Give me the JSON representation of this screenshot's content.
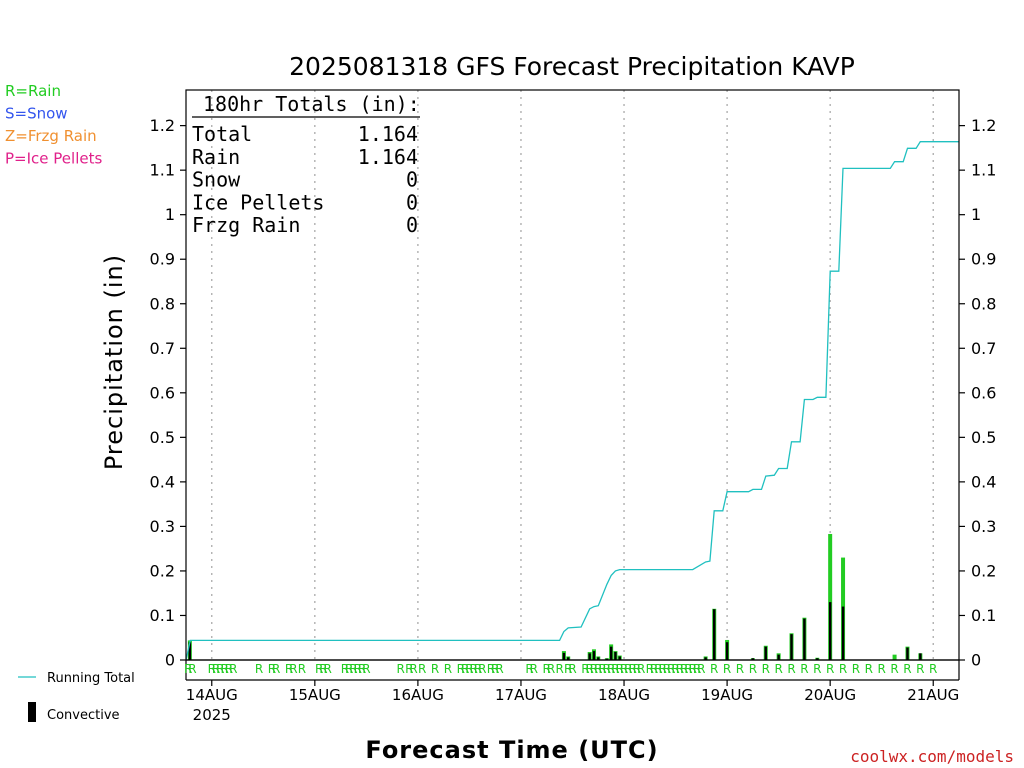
{
  "chart_data": {
    "type": "bar",
    "title": "2025081318 GFS Forecast Precipitation KAVP",
    "ylabel": "Precipitation (in)",
    "xlabel": "Forecast Time (UTC)",
    "ylim": [
      0,
      1.28
    ],
    "yticks": [
      0,
      0.1,
      0.2,
      0.3,
      0.4,
      0.5,
      0.6,
      0.7,
      0.8,
      0.9,
      1,
      1.1,
      1.2
    ],
    "ytick_labels": [
      "0",
      "0.1",
      "0.2",
      "0.3",
      "0.4",
      "0.5",
      "0.6",
      "0.7",
      "0.8",
      "0.9",
      "1",
      "1.1",
      "1.2"
    ],
    "xlim_hours": [
      0,
      180
    ],
    "x_ticks": [
      {
        "hour": 6,
        "label": "14AUG",
        "sublabel": "2025"
      },
      {
        "hour": 30,
        "label": "15AUG"
      },
      {
        "hour": 54,
        "label": "16AUG"
      },
      {
        "hour": 78,
        "label": "17AUG"
      },
      {
        "hour": 102,
        "label": "18AUG"
      },
      {
        "hour": 126,
        "label": "19AUG"
      },
      {
        "hour": 150,
        "label": "20AUG"
      },
      {
        "hour": 174,
        "label": "21AUG"
      }
    ],
    "grid": "vertical-dotted",
    "legend_top_left": [
      {
        "text": "R=Rain",
        "color": "#22cc22"
      },
      {
        "text": "S=Snow",
        "color": "#3355ee"
      },
      {
        "text": "Z=Frzg Rain",
        "color": "#f09030"
      },
      {
        "text": "P=Ice Pellets",
        "color": "#e0208a"
      }
    ],
    "legend_bottom_left": {
      "running_total": "Running Total",
      "convective": "Convective"
    },
    "totals_box": {
      "header": "180hr Totals (in):",
      "rows": [
        {
          "label": "Total",
          "value": "1.164"
        },
        {
          "label": "Rain",
          "value": "1.164"
        },
        {
          "label": "Snow",
          "value": "0"
        },
        {
          "label": "Ice Pellets",
          "value": "0"
        },
        {
          "label": "Frzg Rain",
          "value": "0"
        }
      ]
    },
    "colors": {
      "running_total": "#20c0c0",
      "rain": "#22cc22",
      "convective": "#000000",
      "grid": "#aaaaaa",
      "credit": "#cc2222"
    },
    "precip_bars": [
      {
        "hour": 0.9,
        "total": 0.044,
        "convective": 0.04
      },
      {
        "hour": 88.0,
        "total": 0.02,
        "convective": 0.016
      },
      {
        "hour": 89.0,
        "total": 0.008,
        "convective": 0.006
      },
      {
        "hour": 94.0,
        "total": 0.018,
        "convective": 0.015
      },
      {
        "hour": 95.0,
        "total": 0.024,
        "convective": 0.02
      },
      {
        "hour": 96.0,
        "total": 0.008,
        "convective": 0.006
      },
      {
        "hour": 98.0,
        "total": 0.004,
        "convective": 0.003
      },
      {
        "hour": 99.0,
        "total": 0.035,
        "convective": 0.03
      },
      {
        "hour": 100.0,
        "total": 0.02,
        "convective": 0.018
      },
      {
        "hour": 101.0,
        "total": 0.01,
        "convective": 0.008
      },
      {
        "hour": 121.0,
        "total": 0.008,
        "convective": 0.006
      },
      {
        "hour": 123.0,
        "total": 0.115,
        "convective": 0.114
      },
      {
        "hour": 126.0,
        "total": 0.045,
        "convective": 0.04
      },
      {
        "hour": 132.0,
        "total": 0.004,
        "convective": 0.004
      },
      {
        "hour": 135.0,
        "total": 0.032,
        "convective": 0.03
      },
      {
        "hour": 138.0,
        "total": 0.015,
        "convective": 0.012
      },
      {
        "hour": 141.0,
        "total": 0.06,
        "convective": 0.058
      },
      {
        "hour": 144.0,
        "total": 0.095,
        "convective": 0.093
      },
      {
        "hour": 147.0,
        "total": 0.005,
        "convective": 0.004
      },
      {
        "hour": 150.0,
        "total": 0.283,
        "convective": 0.13
      },
      {
        "hour": 153.0,
        "total": 0.23,
        "convective": 0.12
      },
      {
        "hour": 165.0,
        "total": 0.012,
        "convective": 0.0
      },
      {
        "hour": 168.0,
        "total": 0.03,
        "convective": 0.028
      },
      {
        "hour": 171.0,
        "total": 0.015,
        "convective": 0.015
      }
    ],
    "running_total": [
      {
        "hour": 0,
        "value": 0
      },
      {
        "hour": 1,
        "value": 0.044
      },
      {
        "hour": 48,
        "value": 0.044
      },
      {
        "hour": 87,
        "value": 0.044
      },
      {
        "hour": 88,
        "value": 0.064
      },
      {
        "hour": 89,
        "value": 0.072
      },
      {
        "hour": 92,
        "value": 0.074
      },
      {
        "hour": 94,
        "value": 0.115
      },
      {
        "hour": 95,
        "value": 0.12
      },
      {
        "hour": 96,
        "value": 0.122
      },
      {
        "hour": 98,
        "value": 0.17
      },
      {
        "hour": 99,
        "value": 0.19
      },
      {
        "hour": 100,
        "value": 0.2
      },
      {
        "hour": 101,
        "value": 0.203
      },
      {
        "hour": 118,
        "value": 0.203
      },
      {
        "hour": 121,
        "value": 0.22
      },
      {
        "hour": 122,
        "value": 0.222
      },
      {
        "hour": 123,
        "value": 0.335
      },
      {
        "hour": 125,
        "value": 0.335
      },
      {
        "hour": 126,
        "value": 0.378
      },
      {
        "hour": 131,
        "value": 0.378
      },
      {
        "hour": 132,
        "value": 0.383
      },
      {
        "hour": 134,
        "value": 0.383
      },
      {
        "hour": 135,
        "value": 0.413
      },
      {
        "hour": 137,
        "value": 0.415
      },
      {
        "hour": 138,
        "value": 0.43
      },
      {
        "hour": 140,
        "value": 0.43
      },
      {
        "hour": 141,
        "value": 0.49
      },
      {
        "hour": 143,
        "value": 0.49
      },
      {
        "hour": 144,
        "value": 0.585
      },
      {
        "hour": 146,
        "value": 0.585
      },
      {
        "hour": 147,
        "value": 0.59
      },
      {
        "hour": 149,
        "value": 0.59
      },
      {
        "hour": 150,
        "value": 0.873
      },
      {
        "hour": 152,
        "value": 0.873
      },
      {
        "hour": 153,
        "value": 1.104
      },
      {
        "hour": 164,
        "value": 1.104
      },
      {
        "hour": 165,
        "value": 1.119
      },
      {
        "hour": 167,
        "value": 1.119
      },
      {
        "hour": 168,
        "value": 1.149
      },
      {
        "hour": 170,
        "value": 1.149
      },
      {
        "hour": 171,
        "value": 1.164
      },
      {
        "hour": 180,
        "value": 1.164
      }
    ],
    "precip_type_marks": [
      {
        "hour": 0.5,
        "label": "R"
      },
      {
        "hour": 1.5,
        "label": "R"
      },
      {
        "hour": 6,
        "label": "R"
      },
      {
        "hour": 7,
        "label": "R"
      },
      {
        "hour": 8,
        "label": "R"
      },
      {
        "hour": 9,
        "label": "R"
      },
      {
        "hour": 10,
        "label": "R"
      },
      {
        "hour": 11,
        "label": "R"
      },
      {
        "hour": 17,
        "label": "R"
      },
      {
        "hour": 20,
        "label": "R"
      },
      {
        "hour": 21,
        "label": "R"
      },
      {
        "hour": 24,
        "label": "R"
      },
      {
        "hour": 25,
        "label": "R"
      },
      {
        "hour": 27,
        "label": "R"
      },
      {
        "hour": 31,
        "label": "R"
      },
      {
        "hour": 32,
        "label": "R"
      },
      {
        "hour": 33,
        "label": "R"
      },
      {
        "hour": 37,
        "label": "R"
      },
      {
        "hour": 38,
        "label": "R"
      },
      {
        "hour": 39,
        "label": "R"
      },
      {
        "hour": 40,
        "label": "R"
      },
      {
        "hour": 41,
        "label": "R"
      },
      {
        "hour": 42,
        "label": "R"
      },
      {
        "hour": 50,
        "label": "R"
      },
      {
        "hour": 52,
        "label": "R"
      },
      {
        "hour": 53,
        "label": "R"
      },
      {
        "hour": 55,
        "label": "R"
      },
      {
        "hour": 58,
        "label": "R"
      },
      {
        "hour": 61,
        "label": "R"
      },
      {
        "hour": 64,
        "label": "R"
      },
      {
        "hour": 65,
        "label": "R"
      },
      {
        "hour": 66,
        "label": "R"
      },
      {
        "hour": 67,
        "label": "R"
      },
      {
        "hour": 68,
        "label": "R"
      },
      {
        "hour": 69,
        "label": "R"
      },
      {
        "hour": 71,
        "label": "R"
      },
      {
        "hour": 72,
        "label": "R"
      },
      {
        "hour": 73,
        "label": "R"
      },
      {
        "hour": 80,
        "label": "R"
      },
      {
        "hour": 81,
        "label": "R"
      },
      {
        "hour": 84,
        "label": "R"
      },
      {
        "hour": 85,
        "label": "R"
      },
      {
        "hour": 87,
        "label": "R"
      },
      {
        "hour": 89,
        "label": "R"
      },
      {
        "hour": 90,
        "label": "R"
      },
      {
        "hour": 93,
        "label": "R"
      },
      {
        "hour": 94,
        "label": "R"
      },
      {
        "hour": 95,
        "label": "R"
      },
      {
        "hour": 96,
        "label": "R"
      },
      {
        "hour": 97,
        "label": "R"
      },
      {
        "hour": 98,
        "label": "R"
      },
      {
        "hour": 99,
        "label": "R"
      },
      {
        "hour": 100,
        "label": "R"
      },
      {
        "hour": 101,
        "label": "R"
      },
      {
        "hour": 102,
        "label": "R"
      },
      {
        "hour": 103,
        "label": "R"
      },
      {
        "hour": 104,
        "label": "R"
      },
      {
        "hour": 105,
        "label": "R"
      },
      {
        "hour": 106,
        "label": "R"
      },
      {
        "hour": 108,
        "label": "R"
      },
      {
        "hour": 109,
        "label": "R"
      },
      {
        "hour": 110,
        "label": "R"
      },
      {
        "hour": 111,
        "label": "R"
      },
      {
        "hour": 112,
        "label": "R"
      },
      {
        "hour": 113,
        "label": "R"
      },
      {
        "hour": 114,
        "label": "R"
      },
      {
        "hour": 115,
        "label": "R"
      },
      {
        "hour": 116,
        "label": "R"
      },
      {
        "hour": 117,
        "label": "R"
      },
      {
        "hour": 118,
        "label": "R"
      },
      {
        "hour": 119,
        "label": "R"
      },
      {
        "hour": 120,
        "label": "R"
      },
      {
        "hour": 123,
        "label": "R"
      },
      {
        "hour": 126,
        "label": "R"
      },
      {
        "hour": 129,
        "label": "R"
      },
      {
        "hour": 132,
        "label": "R"
      },
      {
        "hour": 135,
        "label": "R"
      },
      {
        "hour": 138,
        "label": "R"
      },
      {
        "hour": 141,
        "label": "R"
      },
      {
        "hour": 144,
        "label": "R"
      },
      {
        "hour": 147,
        "label": "R"
      },
      {
        "hour": 150,
        "label": "R"
      },
      {
        "hour": 153,
        "label": "R"
      },
      {
        "hour": 156,
        "label": "R"
      },
      {
        "hour": 159,
        "label": "R"
      },
      {
        "hour": 162,
        "label": "R"
      },
      {
        "hour": 165,
        "label": "R"
      },
      {
        "hour": 168,
        "label": "R"
      },
      {
        "hour": 171,
        "label": "R"
      },
      {
        "hour": 174,
        "label": "R"
      }
    ],
    "credit": "coolwx.com/models"
  }
}
